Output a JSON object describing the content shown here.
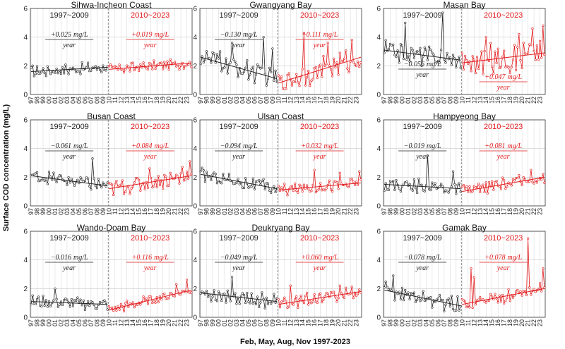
{
  "chart_data": {
    "type": "line",
    "figure_ylabel": "Surface COD concentration (mg/L)",
    "figure_xlabel": "Feb, May, Aug, Nov 1997-2023",
    "ylim": [
      0,
      6
    ],
    "yticks": [
      0,
      2,
      4,
      6
    ],
    "xticks": [
      "97",
      "98",
      "99",
      "00",
      "01",
      "02",
      "03",
      "04",
      "05",
      "06",
      "07",
      "08",
      "09",
      "10",
      "11",
      "12",
      "13",
      "14",
      "15",
      "16",
      "17",
      "18",
      "19",
      "20",
      "21",
      "22",
      "23"
    ],
    "period_labels": {
      "first": "1997~2009",
      "second": "2010~2023"
    },
    "colors": {
      "first": "#222222",
      "second": "#e31a1c",
      "grid": "#c8c8c8",
      "divider": "#777777"
    },
    "panels": [
      {
        "title": "Sihwa-Incheon Coast",
        "slope1_text": "+0.025",
        "slope2_text": "+0.019",
        "unit_text": "mg/L",
        "year_text": "year",
        "trend1": [
          1.6,
          1.9
        ],
        "trend2": [
          1.75,
          2.2
        ],
        "mean1": 1.75,
        "mean2": 2.0,
        "amp1": 0.35,
        "amp2": 0.3,
        "spikes": []
      },
      {
        "title": "Gwangyang Bay",
        "slope1_text": "−0.130",
        "slope2_text": "+0.111",
        "unit_text": "mg/L",
        "year_text": "year",
        "trend1": [
          2.6,
          1.1
        ],
        "trend2": [
          0.8,
          2.6
        ],
        "mean1": 1.9,
        "mean2": 1.7,
        "amp1": 0.6,
        "amp2": 0.7,
        "spikes": [
          [
            13,
            3.0
          ],
          [
            21,
            3.6
          ],
          [
            42,
            4.0
          ],
          [
            48,
            3.2
          ],
          [
            69,
            4.3
          ],
          [
            85,
            3.6
          ],
          [
            101,
            3.8
          ]
        ]
      },
      {
        "title": "Masan Bay",
        "slope1_text": "−0.056",
        "slope2_text": "+0.047",
        "unit_text": "mg/L",
        "year_text": "year",
        "trend1": [
          3.1,
          2.4
        ],
        "trend2": [
          2.2,
          2.9
        ],
        "mean1": 2.8,
        "mean2": 2.6,
        "amp1": 0.6,
        "amp2": 0.9,
        "spikes": [
          [
            14,
            5.0
          ],
          [
            39,
            5.7
          ],
          [
            68,
            4.0
          ],
          [
            90,
            4.2
          ],
          [
            99,
            4.6
          ],
          [
            106,
            4.8
          ]
        ]
      },
      {
        "title": "Busan Coast",
        "slope1_text": "−0.061",
        "slope2_text": "+0.084",
        "unit_text": "mg/L",
        "year_text": "year",
        "trend1": [
          2.1,
          1.4
        ],
        "trend2": [
          1.2,
          2.1
        ],
        "mean1": 1.7,
        "mean2": 1.6,
        "amp1": 0.4,
        "amp2": 0.5,
        "spikes": [
          [
            41,
            3.3
          ],
          [
            79,
            2.6
          ],
          [
            101,
            2.7
          ],
          [
            106,
            3.1
          ]
        ]
      },
      {
        "title": "Ulsan Coast",
        "slope1_text": "−0.094",
        "slope2_text": "+0.032",
        "unit_text": "mg/L",
        "year_text": "year",
        "trend1": [
          2.2,
          1.2
        ],
        "trend2": [
          1.1,
          1.6
        ],
        "mean1": 1.7,
        "mean2": 1.35,
        "amp1": 0.4,
        "amp2": 0.35,
        "spikes": [
          [
            76,
            2.5
          ],
          [
            93,
            2.3
          ],
          [
            106,
            2.4
          ]
        ]
      },
      {
        "title": "Hampyeong Bay",
        "slope1_text": "−0.019",
        "slope2_text": "+0.081",
        "unit_text": "mg/L",
        "year_text": "year",
        "trend1": [
          1.5,
          1.2
        ],
        "trend2": [
          1.0,
          2.0
        ],
        "mean1": 1.3,
        "mean2": 1.5,
        "amp1": 0.45,
        "amp2": 0.4,
        "spikes": [
          [
            29,
            3.5
          ],
          [
            46,
            2.4
          ],
          [
            98,
            2.5
          ]
        ]
      },
      {
        "title": "Wando-Doam Bay",
        "slope1_text": "−0.016",
        "slope2_text": "+0.116",
        "unit_text": "mg/L",
        "year_text": "year",
        "trend1": [
          1.1,
          0.9
        ],
        "trend2": [
          0.5,
          1.9
        ],
        "mean1": 1.0,
        "mean2": 1.2,
        "amp1": 0.35,
        "amp2": 0.3,
        "spikes": [
          [
            16,
            2.0
          ],
          [
            97,
            2.3
          ],
          [
            104,
            2.6
          ]
        ]
      },
      {
        "title": "Deukryang Bay",
        "slope1_text": "−0.049",
        "slope2_text": "+0.060",
        "unit_text": "mg/L",
        "year_text": "year",
        "trend1": [
          1.7,
          1.1
        ],
        "trend2": [
          0.9,
          1.8
        ],
        "mean1": 1.4,
        "mean2": 1.4,
        "amp1": 0.5,
        "amp2": 0.4,
        "spikes": [
          [
            21,
            2.8
          ],
          [
            60,
            2.2
          ],
          [
            93,
            2.2
          ]
        ]
      },
      {
        "title": "Gamak Bay",
        "slope1_text": "−0.078",
        "slope2_text": "+0.078",
        "unit_text": "mg/L",
        "year_text": "year",
        "trend1": [
          1.9,
          0.8
        ],
        "trend2": [
          0.9,
          2.0
        ],
        "mean1": 1.3,
        "mean2": 1.4,
        "amp1": 0.5,
        "amp2": 0.4,
        "spikes": [
          [
            6,
            2.9
          ],
          [
            60,
            2.8
          ],
          [
            58,
            3.4
          ],
          [
            96,
            5.5
          ],
          [
            106,
            3.4
          ]
        ]
      }
    ]
  }
}
